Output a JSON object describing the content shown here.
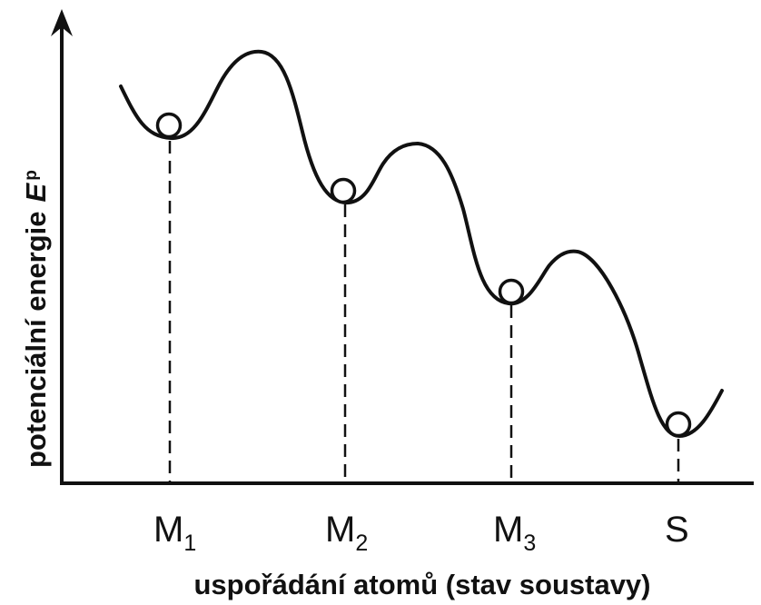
{
  "y_axis": {
    "label": "potenciální energie",
    "symbol": "E",
    "symbol_sub": "p"
  },
  "x_axis": {
    "label": "uspořádání atomů (stav soustavy)"
  },
  "states": [
    {
      "letter": "M",
      "sub": "1"
    },
    {
      "letter": "M",
      "sub": "2"
    },
    {
      "letter": "M",
      "sub": "3"
    },
    {
      "letter": "S",
      "sub": ""
    }
  ],
  "colors": {
    "ink": "#111111",
    "background": "#ffffff"
  }
}
